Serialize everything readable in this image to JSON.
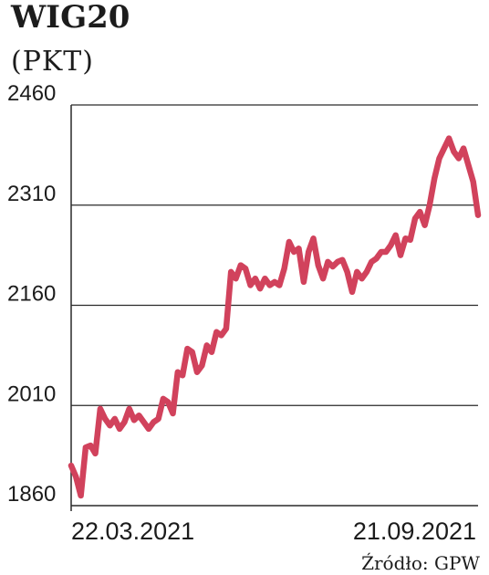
{
  "chart_data": {
    "type": "line",
    "title": "WIG20",
    "unit": "(PKT)",
    "source": "Źródło: GPW",
    "x_start_label": "22.03.2021",
    "x_end_label": "21.09.2021",
    "yticks": [
      1860,
      2010,
      2160,
      2310,
      2460
    ],
    "ylim": [
      1860,
      2460
    ],
    "grid": true,
    "series_color": "#d1425c",
    "series": [
      {
        "values": [
          1920,
          1903,
          1875,
          1947,
          1950,
          1938,
          2005,
          1990,
          1980,
          1990,
          1975,
          1985,
          2005,
          1988,
          1995,
          1985,
          1975,
          1985,
          1990,
          2020,
          2015,
          1998,
          2060,
          2055,
          2095,
          2090,
          2060,
          2070,
          2100,
          2090,
          2120,
          2115,
          2125,
          2210,
          2200,
          2220,
          2215,
          2190,
          2200,
          2185,
          2200,
          2190,
          2195,
          2190,
          2215,
          2255,
          2240,
          2245,
          2195,
          2240,
          2260,
          2220,
          2200,
          2225,
          2218,
          2225,
          2228,
          2210,
          2180,
          2210,
          2200,
          2210,
          2225,
          2230,
          2240,
          2240,
          2250,
          2265,
          2235,
          2260,
          2258,
          2290,
          2300,
          2280,
          2310,
          2350,
          2380,
          2395,
          2410,
          2390,
          2380,
          2395,
          2370,
          2345,
          2295
        ]
      }
    ]
  }
}
